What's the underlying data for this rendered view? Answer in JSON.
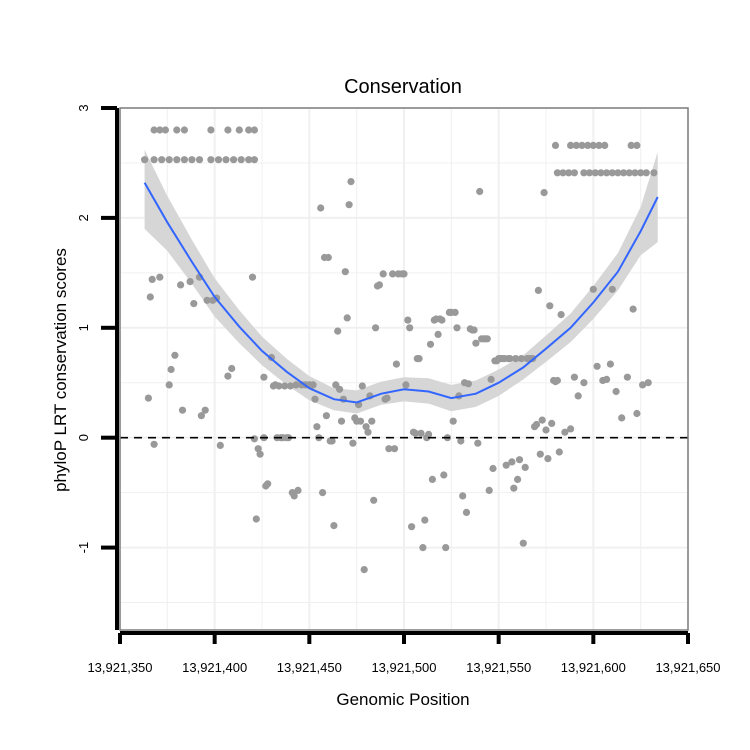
{
  "chart_data": {
    "type": "scatter",
    "title": "Conservation",
    "xlabel": "Genomic Position",
    "ylabel": "phyloP LRT conservation scores",
    "xlim": [
      13921350,
      13921650
    ],
    "ylim": [
      -1.75,
      3.0
    ],
    "x_ticks": [
      13921350,
      13921400,
      13921450,
      13921500,
      13921550,
      13921600,
      13921650
    ],
    "x_tick_labels": [
      "13,921,350",
      "13,921,400",
      "13,921,450",
      "13,921,500",
      "13,921,550",
      "13,921,600",
      "13,921,650"
    ],
    "y_ticks": [
      -1,
      0,
      1,
      2,
      3
    ],
    "y_tick_labels": [
      "-1",
      "0",
      "1",
      "2",
      "3"
    ],
    "reference_line": {
      "y": 0,
      "style": "dashed"
    },
    "colors": {
      "points": "#999999",
      "smooth": "#3366ff",
      "band": "#d6d6d6",
      "grid": "#f0f0f0",
      "frame": "#7f7f7f"
    },
    "points": [
      [
        13921363,
        2.53
      ],
      [
        13921368,
        2.53
      ],
      [
        13921372,
        2.53
      ],
      [
        13921376,
        2.53
      ],
      [
        13921380,
        2.53
      ],
      [
        13921384,
        2.53
      ],
      [
        13921388,
        2.53
      ],
      [
        13921392,
        2.53
      ],
      [
        13921368,
        2.8
      ],
      [
        13921371,
        2.8
      ],
      [
        13921374,
        2.8
      ],
      [
        13921380,
        2.8
      ],
      [
        13921384,
        2.8
      ],
      [
        13921398,
        2.8
      ],
      [
        13921407,
        2.8
      ],
      [
        13921413,
        2.8
      ],
      [
        13921418,
        2.8
      ],
      [
        13921421,
        2.8
      ],
      [
        13921398,
        2.53
      ],
      [
        13921402,
        2.53
      ],
      [
        13921406,
        2.53
      ],
      [
        13921410,
        2.53
      ],
      [
        13921414,
        2.53
      ],
      [
        13921418,
        2.53
      ],
      [
        13921421,
        2.53
      ],
      [
        13921365,
        0.36
      ],
      [
        13921366,
        1.28
      ],
      [
        13921367,
        1.44
      ],
      [
        13921368,
        -0.06
      ],
      [
        13921371,
        1.46
      ],
      [
        13921376,
        0.48
      ],
      [
        13921377,
        0.62
      ],
      [
        13921379,
        0.75
      ],
      [
        13921382,
        1.39
      ],
      [
        13921383,
        0.25
      ],
      [
        13921387,
        1.42
      ],
      [
        13921389,
        1.22
      ],
      [
        13921392,
        1.46
      ],
      [
        13921393,
        0.2
      ],
      [
        13921395,
        0.25
      ],
      [
        13921396,
        1.25
      ],
      [
        13921399,
        1.25
      ],
      [
        13921401,
        1.27
      ],
      [
        13921403,
        -0.07
      ],
      [
        13921407,
        0.56
      ],
      [
        13921409,
        0.63
      ],
      [
        13921420,
        1.46
      ],
      [
        13921421,
        -0.01
      ],
      [
        13921422,
        -0.74
      ],
      [
        13921423,
        -0.1
      ],
      [
        13921424,
        -0.15
      ],
      [
        13921426,
        0.55
      ],
      [
        13921426,
        0.0
      ],
      [
        13921427,
        -0.44
      ],
      [
        13921428,
        -0.42
      ],
      [
        13921430,
        0.73
      ],
      [
        13921431,
        0.47
      ],
      [
        13921432,
        0.48
      ],
      [
        13921433,
        0.0
      ],
      [
        13921434,
        0.47
      ],
      [
        13921435,
        0.0
      ],
      [
        13921436,
        0.0
      ],
      [
        13921437,
        0.47
      ],
      [
        13921438,
        0.0
      ],
      [
        13921439,
        0.0
      ],
      [
        13921440,
        0.47
      ],
      [
        13921441,
        -0.5
      ],
      [
        13921442,
        -0.53
      ],
      [
        13921443,
        0.48
      ],
      [
        13921444,
        -0.48
      ],
      [
        13921446,
        0.48
      ],
      [
        13921448,
        0.48
      ],
      [
        13921450,
        0.48
      ],
      [
        13921452,
        0.48
      ],
      [
        13921453,
        0.35
      ],
      [
        13921454,
        0.1
      ],
      [
        13921455,
        0.0
      ],
      [
        13921456,
        2.09
      ],
      [
        13921457,
        -0.5
      ],
      [
        13921458,
        1.64
      ],
      [
        13921459,
        0.2
      ],
      [
        13921460,
        1.64
      ],
      [
        13921461,
        -0.03
      ],
      [
        13921462,
        -0.03
      ],
      [
        13921463,
        -0.8
      ],
      [
        13921464,
        0.48
      ],
      [
        13921465,
        0.97
      ],
      [
        13921466,
        0.44
      ],
      [
        13921467,
        0.15
      ],
      [
        13921468,
        0.35
      ],
      [
        13921469,
        1.51
      ],
      [
        13921470,
        1.09
      ],
      [
        13921471,
        2.12
      ],
      [
        13921472,
        2.33
      ],
      [
        13921473,
        -0.05
      ],
      [
        13921474,
        0.18
      ],
      [
        13921475,
        0.15
      ],
      [
        13921476,
        0.3
      ],
      [
        13921477,
        0.15
      ],
      [
        13921478,
        0.47
      ],
      [
        13921479,
        -1.2
      ],
      [
        13921480,
        0.1
      ],
      [
        13921481,
        0.05
      ],
      [
        13921482,
        0.38
      ],
      [
        13921483,
        0.15
      ],
      [
        13921484,
        -0.57
      ],
      [
        13921485,
        1.0
      ],
      [
        13921486,
        1.38
      ],
      [
        13921487,
        1.39
      ],
      [
        13921489,
        1.49
      ],
      [
        13921490,
        0.35
      ],
      [
        13921491,
        0.36
      ],
      [
        13921492,
        -0.1
      ],
      [
        13921494,
        1.49
      ],
      [
        13921495,
        -0.1
      ],
      [
        13921496,
        0.67
      ],
      [
        13921497,
        1.49
      ],
      [
        13921499,
        1.49
      ],
      [
        13921500,
        1.49
      ],
      [
        13921501,
        0.48
      ],
      [
        13921502,
        1.07
      ],
      [
        13921503,
        1.0
      ],
      [
        13921504,
        -0.81
      ],
      [
        13921505,
        0.05
      ],
      [
        13921506,
        0.04
      ],
      [
        13921507,
        0.72
      ],
      [
        13921508,
        0.72
      ],
      [
        13921509,
        0.04
      ],
      [
        13921510,
        -1.0
      ],
      [
        13921511,
        -0.75
      ],
      [
        13921512,
        0.0
      ],
      [
        13921513,
        0.03
      ],
      [
        13921514,
        0.85
      ],
      [
        13921515,
        -0.38
      ],
      [
        13921516,
        1.07
      ],
      [
        13921517,
        1.08
      ],
      [
        13921518,
        0.94
      ],
      [
        13921519,
        1.08
      ],
      [
        13921520,
        1.07
      ],
      [
        13921521,
        -0.34
      ],
      [
        13921522,
        -1.0
      ],
      [
        13921523,
        0.0
      ],
      [
        13921524,
        1.14
      ],
      [
        13921525,
        1.14
      ],
      [
        13921526,
        0.15
      ],
      [
        13921527,
        1.14
      ],
      [
        13921528,
        1.0
      ],
      [
        13921529,
        0.38
      ],
      [
        13921530,
        -0.03
      ],
      [
        13921531,
        -0.53
      ],
      [
        13921532,
        0.5
      ],
      [
        13921533,
        -0.68
      ],
      [
        13921534,
        0.49
      ],
      [
        13921535,
        0.99
      ],
      [
        13921536,
        0.98
      ],
      [
        13921537,
        0.98
      ],
      [
        13921538,
        0.86
      ],
      [
        13921539,
        -0.05
      ],
      [
        13921540,
        2.24
      ],
      [
        13921541,
        0.9
      ],
      [
        13921542,
        0.9
      ],
      [
        13921543,
        0.9
      ],
      [
        13921544,
        0.9
      ],
      [
        13921545,
        -0.48
      ],
      [
        13921546,
        0.53
      ],
      [
        13921547,
        -0.28
      ],
      [
        13921548,
        0.7
      ],
      [
        13921549,
        0.7
      ],
      [
        13921550,
        0.72
      ],
      [
        13921551,
        0.72
      ],
      [
        13921552,
        0.72
      ],
      [
        13921553,
        0.72
      ],
      [
        13921554,
        -0.25
      ],
      [
        13921555,
        0.72
      ],
      [
        13921556,
        0.72
      ],
      [
        13921557,
        -0.22
      ],
      [
        13921558,
        -0.46
      ],
      [
        13921559,
        0.72
      ],
      [
        13921560,
        -0.38
      ],
      [
        13921561,
        -0.2
      ],
      [
        13921562,
        0.72
      ],
      [
        13921563,
        -0.96
      ],
      [
        13921564,
        -0.27
      ],
      [
        13921565,
        0.72
      ],
      [
        13921566,
        0.72
      ],
      [
        13921567,
        0.72
      ],
      [
        13921568,
        0.72
      ],
      [
        13921569,
        0.1
      ],
      [
        13921570,
        0.12
      ],
      [
        13921571,
        1.34
      ],
      [
        13921572,
        -0.15
      ],
      [
        13921573,
        0.16
      ],
      [
        13921574,
        2.23
      ],
      [
        13921575,
        0.07
      ],
      [
        13921576,
        -0.19
      ],
      [
        13921577,
        1.2
      ],
      [
        13921578,
        0.13
      ],
      [
        13921579,
        0.52
      ],
      [
        13921580,
        0.51
      ],
      [
        13921581,
        0.52
      ],
      [
        13921582,
        -0.13
      ],
      [
        13921583,
        1.12
      ],
      [
        13921585,
        0.05
      ],
      [
        13921588,
        0.08
      ],
      [
        13921590,
        0.55
      ],
      [
        13921592,
        0.38
      ],
      [
        13921595,
        0.5
      ],
      [
        13921600,
        1.35
      ],
      [
        13921602,
        0.65
      ],
      [
        13921605,
        0.52
      ],
      [
        13921607,
        0.53
      ],
      [
        13921609,
        0.67
      ],
      [
        13921610,
        1.35
      ],
      [
        13921612,
        0.42
      ],
      [
        13921615,
        0.18
      ],
      [
        13921618,
        0.55
      ],
      [
        13921621,
        1.17
      ],
      [
        13921623,
        0.22
      ],
      [
        13921626,
        0.48
      ],
      [
        13921629,
        0.5
      ],
      [
        13921580,
        2.66
      ],
      [
        13921588,
        2.66
      ],
      [
        13921591,
        2.66
      ],
      [
        13921594,
        2.66
      ],
      [
        13921597,
        2.66
      ],
      [
        13921600,
        2.66
      ],
      [
        13921603,
        2.66
      ],
      [
        13921606,
        2.66
      ],
      [
        13921620,
        2.66
      ],
      [
        13921623,
        2.66
      ],
      [
        13921581,
        2.41
      ],
      [
        13921584,
        2.41
      ],
      [
        13921587,
        2.41
      ],
      [
        13921590,
        2.41
      ],
      [
        13921595,
        2.41
      ],
      [
        13921598,
        2.41
      ],
      [
        13921601,
        2.41
      ],
      [
        13921604,
        2.41
      ],
      [
        13921607,
        2.41
      ],
      [
        13921610,
        2.41
      ],
      [
        13921613,
        2.41
      ],
      [
        13921616,
        2.41
      ],
      [
        13921619,
        2.41
      ],
      [
        13921622,
        2.41
      ],
      [
        13921625,
        2.41
      ],
      [
        13921628,
        2.41
      ],
      [
        13921632,
        2.41
      ]
    ],
    "smooth": {
      "x": [
        13921363,
        13921375,
        13921388,
        13921400,
        13921413,
        13921425,
        13921438,
        13921450,
        13921463,
        13921475,
        13921488,
        13921500,
        13921513,
        13921525,
        13921538,
        13921550,
        13921563,
        13921575,
        13921588,
        13921600,
        13921613,
        13921625,
        13921634
      ],
      "y": [
        2.32,
        1.96,
        1.6,
        1.28,
        1.01,
        0.79,
        0.6,
        0.45,
        0.35,
        0.32,
        0.4,
        0.44,
        0.42,
        0.36,
        0.4,
        0.5,
        0.64,
        0.81,
        1.0,
        1.23,
        1.51,
        1.88,
        2.19
      ],
      "upper": [
        2.62,
        2.2,
        1.8,
        1.45,
        1.16,
        0.92,
        0.72,
        0.56,
        0.45,
        0.43,
        0.51,
        0.55,
        0.54,
        0.48,
        0.52,
        0.62,
        0.75,
        0.93,
        1.13,
        1.38,
        1.68,
        2.1,
        2.6
      ],
      "lower": [
        1.9,
        1.7,
        1.4,
        1.1,
        0.86,
        0.66,
        0.48,
        0.34,
        0.25,
        0.22,
        0.3,
        0.33,
        0.31,
        0.24,
        0.28,
        0.38,
        0.53,
        0.69,
        0.87,
        1.08,
        1.34,
        1.66,
        1.78
      ]
    }
  }
}
